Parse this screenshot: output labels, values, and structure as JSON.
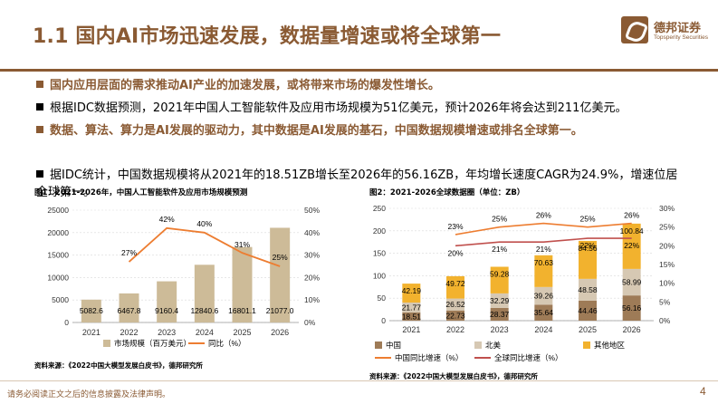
{
  "header": {
    "title": "1.1 国内AI市场迅速发展，数据量增速或将全球第一",
    "logo_cn": "德邦证券",
    "logo_en": "Topsperity Securities"
  },
  "bullets": [
    {
      "style": "brown",
      "text": "国内应用层面的需求推动AI产业的加速发展，或将带来市场的爆发性增长。"
    },
    {
      "style": "black",
      "text": "根据IDC数据预测，2021年中国人工智能软件及应用市场规模为51亿美元，预计2026年将会达到211亿美元。"
    },
    {
      "style": "brown",
      "text": "数据、算法、算力是AI发展的驱动力，其中数据是AI发展的基石，中国数据规模增速或排名全球第一。"
    },
    {
      "style": "black",
      "text": "据IDC统计，中国数据规模将从2021年的18.51ZB增长至2026年的56.16ZB，年均增长速度CAGR为24.9%，增速位居全球第一。"
    }
  ],
  "chart1": {
    "caption": "图1：2021-2026年，中国人工智能软件及应用市场规模预测",
    "source": "资料来源：《2022中国大模型发展白皮书》，德邦研究所"
  },
  "chart2": {
    "caption": "图2：2021-2026全球数据圈（单位：ZB）",
    "source": "资料来源：《2022中国大模型发展白皮书》，德邦研究所"
  },
  "chart_data": [
    {
      "type": "bar",
      "categories": [
        "2021",
        "2022",
        "2023",
        "2024",
        "2025",
        "2026"
      ],
      "series": [
        {
          "name": "市场规模（百万美元）",
          "values": [
            5082.6,
            6467.8,
            9160.4,
            12840.6,
            16801.1,
            21077.0
          ],
          "labels": [
            "5082.6",
            "6467.8",
            "9160.4",
            "12840.6",
            "16801.1",
            "21077.0"
          ],
          "color": "#cdbb98"
        },
        {
          "name": "同比（%）",
          "type": "line",
          "axis": "right",
          "values": [
            null,
            27,
            42,
            40,
            31,
            25
          ],
          "labels": [
            "",
            "27%",
            "42%",
            "40%",
            "31%",
            "25%"
          ],
          "color": "#ed7d31"
        }
      ],
      "ylim": [
        0,
        25000
      ],
      "yticks": [
        "0",
        "5000",
        "10000",
        "15000",
        "20000",
        "25000"
      ],
      "y2lim": [
        0,
        50
      ],
      "y2ticks": [
        "0%",
        "10%",
        "20%",
        "30%",
        "40%",
        "50%"
      ]
    },
    {
      "type": "bar",
      "stacked": true,
      "categories": [
        "2021",
        "2022",
        "2023",
        "2024",
        "2025",
        "2026"
      ],
      "series": [
        {
          "name": "中国",
          "values": [
            18.51,
            22.73,
            28.37,
            35.64,
            44.46,
            56.16
          ],
          "labels": [
            "18.51",
            "22.73",
            "28.37",
            "35.64",
            "44.46",
            "56.16"
          ],
          "color": "#9e7b57"
        },
        {
          "name": "北美",
          "values": [
            21.77,
            26.52,
            32.29,
            39.26,
            48.58,
            58.99
          ],
          "labels": [
            "21.77",
            "26.52",
            "32.29",
            "39.26",
            "48.58",
            "58.99"
          ],
          "color": "#d6c8b3"
        },
        {
          "name": "其他地区",
          "values": [
            42.19,
            49.72,
            59.28,
            70.63,
            84.56,
            100.84
          ],
          "labels": [
            "42.19",
            "49.72",
            "59.28",
            "70.63",
            "84.56",
            "100.84"
          ],
          "color": "#f2b22e"
        },
        {
          "name": "中国同比增速（%）",
          "type": "line",
          "axis": "right",
          "values": [
            null,
            23,
            25,
            26,
            25,
            26
          ],
          "labels": [
            "",
            "23%",
            "25%",
            "26%",
            "25%",
            "26%"
          ],
          "color": "#ed7d31"
        },
        {
          "name": "全球同比增速（%）",
          "type": "line",
          "axis": "right",
          "values": [
            null,
            20,
            21,
            21,
            22,
            22
          ],
          "labels": [
            "",
            "20%",
            "21%",
            "21%",
            "22%",
            "22%"
          ],
          "color": "#c0504d"
        }
      ],
      "ylim": [
        0,
        250
      ],
      "yticks": [
        "0",
        "50",
        "100",
        "150",
        "200",
        "250"
      ],
      "y2lim": [
        0,
        30
      ],
      "y2ticks": [
        "0%",
        "5%",
        "10%",
        "15%",
        "20%",
        "25%",
        "30%"
      ]
    }
  ],
  "footer": {
    "disclaimer": "请务必阅读正文之后的信息披露及法律声明。",
    "page": "4"
  },
  "colors": {
    "brand": "#8a5a33"
  }
}
